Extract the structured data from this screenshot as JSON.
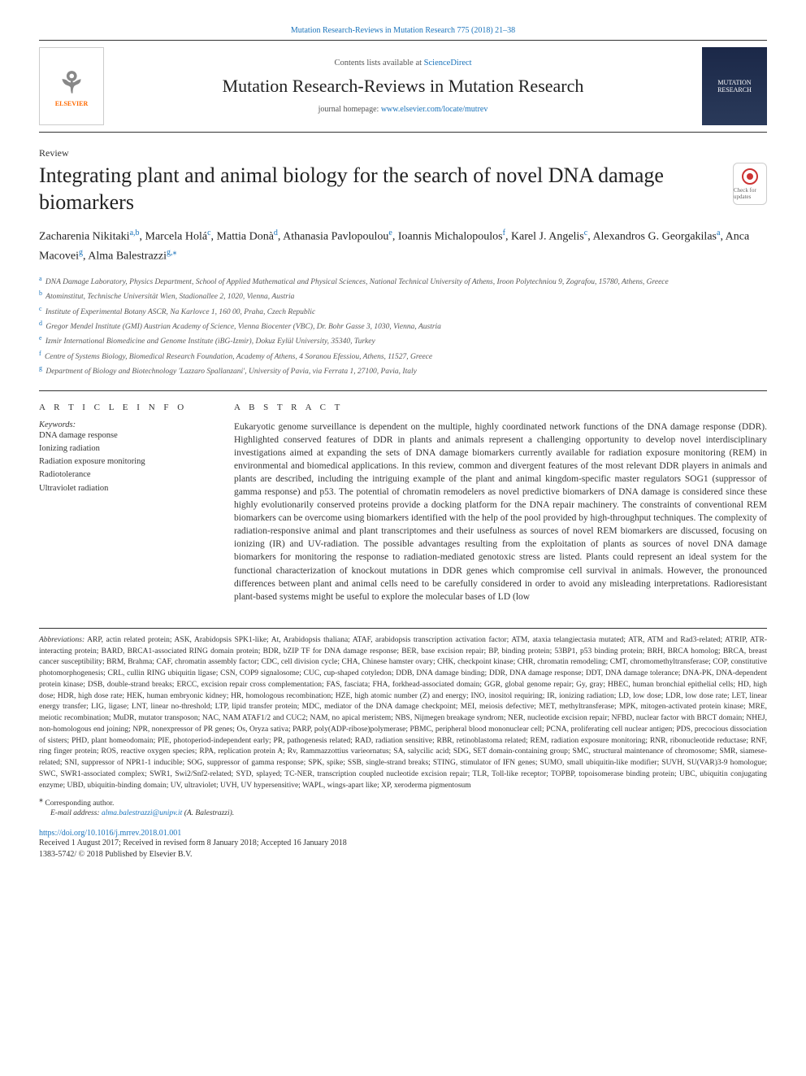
{
  "header": {
    "top_link_prefix": "Mutation Research-Reviews in Mutation Research 775 (2018) 21–38",
    "contents_prefix": "Contents lists available at ",
    "contents_link": "ScienceDirect",
    "journal_title": "Mutation Research-Reviews in Mutation Research",
    "homepage_prefix": "journal homepage: ",
    "homepage_link": "www.elsevier.com/locate/mutrev",
    "publisher_logo_text": "ELSEVIER",
    "cover_text": "MUTATION RESEARCH",
    "check_badge_text": "Check for updates"
  },
  "article": {
    "type": "Review",
    "title": "Integrating plant and animal biology for the search of novel DNA damage biomarkers"
  },
  "authors_html": "Zacharenia Nikitaki<sup><a>a</a>,<a>b</a></sup>, Marcela Holá<sup><a>c</a></sup>, Mattia Donà<sup><a>d</a></sup>, Athanasia Pavlopoulou<sup><a>e</a></sup>, Ioannis Michalopoulos<sup><a>f</a></sup>, Karel J. Angelis<sup><a>c</a></sup>, Alexandros G. Georgakilas<sup><a>a</a></sup>, Anca Macovei<sup><a>g</a></sup>, Alma Balestrazzi<sup><a>g</a>,<a>⁎</a></sup>",
  "affiliations": [
    {
      "sup": "a",
      "text": "DNA Damage Laboratory, Physics Department, School of Applied Mathematical and Physical Sciences, National Technical University of Athens, Iroon Polytechniou 9, Zografou, 15780, Athens, Greece"
    },
    {
      "sup": "b",
      "text": "Atominstitut, Technische Universität Wien, Stadionallee 2, 1020, Vienna, Austria"
    },
    {
      "sup": "c",
      "text": "Institute of Experimental Botany ASCR, Na Karlovce 1, 160 00, Praha, Czech Republic"
    },
    {
      "sup": "d",
      "text": "Gregor Mendel Institute (GMI) Austrian Academy of Science, Vienna Biocenter (VBC), Dr. Bohr Gasse 3, 1030, Vienna, Austria"
    },
    {
      "sup": "e",
      "text": "Izmir International Biomedicine and Genome Institute (iBG-Izmir), Dokuz Eylül University, 35340, Turkey"
    },
    {
      "sup": "f",
      "text": "Centre of Systems Biology, Biomedical Research Foundation, Academy of Athens, 4 Soranou Efessiou, Athens, 11527, Greece"
    },
    {
      "sup": "g",
      "text": "Department of Biology and Biotechnology 'Lazzaro Spallanzani', University of Pavia, via Ferrata 1, 27100, Pavia, Italy"
    }
  ],
  "info": {
    "heading": "A R T I C L E  I N F O",
    "keywords_label": "Keywords:",
    "keywords": [
      "DNA damage response",
      "Ionizing radiation",
      "Radiation exposure monitoring",
      "Radiotolerance",
      "Ultraviolet radiation"
    ]
  },
  "abstract": {
    "heading": "A B S T R A C T",
    "text": "Eukaryotic genome surveillance is dependent on the multiple, highly coordinated network functions of the DNA damage response (DDR). Highlighted conserved features of DDR in plants and animals represent a challenging opportunity to develop novel interdisciplinary investigations aimed at expanding the sets of DNA damage biomarkers currently available for radiation exposure monitoring (REM) in environmental and biomedical applications. In this review, common and divergent features of the most relevant DDR players in animals and plants are described, including the intriguing example of the plant and animal kingdom-specific master regulators SOG1 (suppressor of gamma response) and p53. The potential of chromatin remodelers as novel predictive biomarkers of DNA damage is considered since these highly evolutionarily conserved proteins provide a docking platform for the DNA repair machinery. The constraints of conventional REM biomarkers can be overcome using biomarkers identified with the help of the pool provided by high-throughput techniques. The complexity of radiation-responsive animal and plant transcriptomes and their usefulness as sources of novel REM biomarkers are discussed, focusing on ionizing (IR) and UV-radiation. The possible advantages resulting from the exploitation of plants as sources of novel DNA damage biomarkers for monitoring the response to radiation-mediated genotoxic stress are listed. Plants could represent an ideal system for the functional characterization of knockout mutations in DDR genes which compromise cell survival in animals. However, the pronounced differences between plant and animal cells need to be carefully considered in order to avoid any misleading interpretations. Radioresistant plant-based systems might be useful to explore the molecular bases of LD (low"
  },
  "abbreviations": {
    "label": "Abbreviations:",
    "text": " ARP, actin related protein; ASK, Arabidopsis SPK1-like; At, Arabidopsis thaliana; ATAF, arabidopsis transcription activation factor; ATM, ataxia telangiectasia mutated; ATR, ATM and Rad3-related; ATRIP, ATR-interacting protein; BARD, BRCA1-associated RING domain protein; BDR, bZIP TF for DNA damage response; BER, base excision repair; BP, binding protein; 53BP1, p53 binding protein; BRH, BRCA homolog; BRCA, breast cancer susceptibility; BRM, Brahma; CAF, chromatin assembly factor; CDC, cell division cycle; CHA, Chinese hamster ovary; CHK, checkpoint kinase; CHR, chromatin remodeling; CMT, chromomethyltransferase; COP, constitutive photomorphogenesis; CRL, cullin RING ubiquitin ligase; CSN, COP9 signalosome; CUC, cup-shaped cotyledon; DDB, DNA damage binding; DDR, DNA damage response; DDT, DNA damage tolerance; DNA-PK, DNA-dependent protein kinase; DSB, double-strand breaks; ERCC, excision repair cross complementation; FAS, fasciata; FHA, forkhead-associated domain; GGR, global genome repair; Gy, gray; HBEC, human bronchial epithelial cells; HD, high dose; HDR, high dose rate; HEK, human embryonic kidney; HR, homologous recombination; HZE, high atomic number (Z) and energy; INO, inositol requiring; IR, ionizing radiation; LD, low dose; LDR, low dose rate; LET, linear energy transfer; LIG, ligase; LNT, linear no-threshold; LTP, lipid transfer protein; MDC, mediator of the DNA damage checkpoint; MEI, meiosis defective; MET, methyltransferase; MPK, mitogen-activated protein kinase; MRE, meiotic recombination; MuDR, mutator transposon; NAC, NAM ATAF1/2 and CUC2; NAM, no apical meristem; NBS, Nijmegen breakage syndrom; NER, nucleotide excision repair; NFBD, nuclear factor with BRCT domain; NHEJ, non-homologous end joining; NPR, nonexpressor of PR genes; Os, Oryza sativa; PARP, poly(ADP-ribose)polymerase; PBMC, peripheral blood mononuclear cell; PCNA, proliferating cell nuclear antigen; PDS, precocious dissociation of sisters; PHD, plant homeodomain; PIE, photoperiod-independent early; PR, pathogenesis related; RAD, radiation sensitive; RBR, retinoblastoma related; REM, radiation exposure monitoring; RNR, ribonucleotide reductase; RNF, ring finger protein; ROS, reactive oxygen species; RPA, replication protein A; Rv, Rammazzottius varieornatus; SA, salycilic acid; SDG, SET domain-containing group; SMC, structural maintenance of chromosome; SMR, siamese-related; SNI, suppressor of NPR1-1 inducible; SOG, suppressor of gamma response; SPK, spike; SSB, single-strand breaks; STING, stimulator of IFN genes; SUMO, small ubiquitin-like modifier; SUVH, SU(VAR)3-9 homologue; SWC, SWR1-associated complex; SWR1, Swi2/Snf2-related; SYD, splayed; TC-NER, transcription coupled nucleotide excision repair; TLR, Toll-like receptor; TOPBP, topoisomerase binding protein; UBC, ubiquitin conjugating enzyme; UBD, ubiquitin-binding domain; UV, ultraviolet; UVH, UV hypersensitive; WAPL, wings-apart like; XP, xeroderma pigmentosum"
  },
  "corresponding": {
    "mark": "⁎",
    "text": "Corresponding author.",
    "email_label": "E-mail address: ",
    "email": "alma.balestrazzi@unipv.it",
    "email_suffix": " (A. Balestrazzi)."
  },
  "footer": {
    "doi": "https://doi.org/10.1016/j.mrrev.2018.01.001",
    "receipt": "Received 1 August 2017; Received in revised form 8 January 2018; Accepted 16 January 2018",
    "issn_line": "1383-5742/ © 2018 Published by Elsevier B.V."
  },
  "colors": {
    "link": "#1a73bb",
    "text": "#333333",
    "border": "#333333",
    "cover_bg": "#1b2848",
    "elsevier": "#ff6a00"
  }
}
